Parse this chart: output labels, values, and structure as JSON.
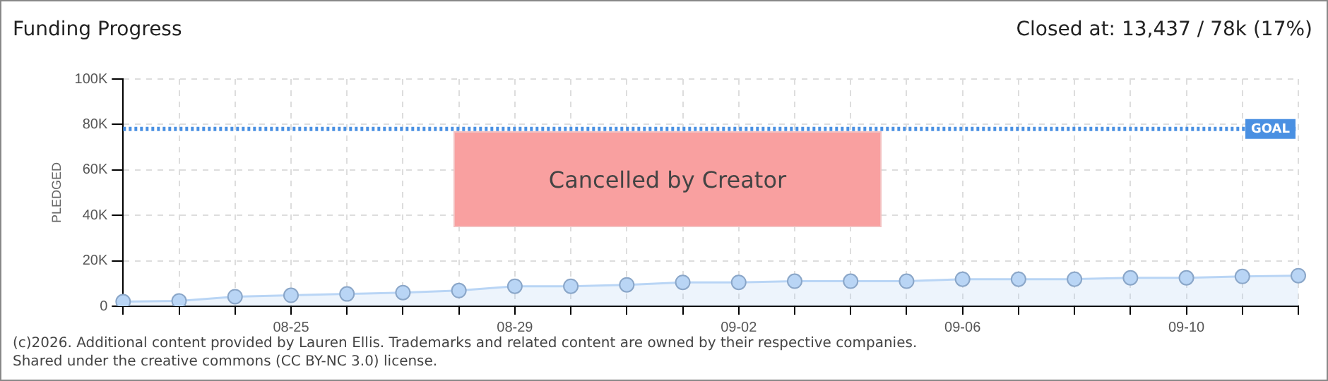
{
  "chart_data": {
    "type": "area",
    "title": "Funding Progress",
    "subtitle": "Closed at:  13,437 /  78k (17%)",
    "ylabel": "PLEDGED",
    "categories": [
      null,
      null,
      null,
      "08-25",
      null,
      null,
      null,
      "08-29",
      null,
      null,
      null,
      "09-02",
      null,
      null,
      null,
      "09-06",
      null,
      null,
      null,
      "09-10",
      null,
      null
    ],
    "series": [
      {
        "color": "#b9d5f5",
        "values": [
          2000,
          2300,
          4200,
          4800,
          5400,
          6000,
          6900,
          8800,
          8800,
          9400,
          10500,
          10500,
          11000,
          11000,
          11000,
          11900,
          11900,
          11900,
          12500,
          12500,
          13100,
          13437
        ]
      }
    ],
    "ylim": [
      0,
      100000
    ],
    "yticks": [
      0,
      {
        "value": 20000,
        "label": "20K"
      },
      {
        "value": 40000,
        "label": "40K"
      },
      {
        "value": 60000,
        "label": "60K"
      },
      {
        "value": 80000,
        "label": "80K"
      },
      {
        "value": 100000,
        "label": "100K"
      }
    ],
    "grid": true,
    "legend": false,
    "marker": "circle",
    "ref_lines": [
      {
        "axis": "y",
        "value": 78000,
        "label": "GOAL",
        "color": "#4a90e2",
        "line_style": "dotted"
      }
    ],
    "annotations": [
      "Cancelled by Creator",
      "(c)2026. Additional content provided by Lauren Ellis. Trademarks and related content are owned by their respective companies.",
      "Shared under the creative commons (CC BY-NC 3.0) license."
    ]
  }
}
